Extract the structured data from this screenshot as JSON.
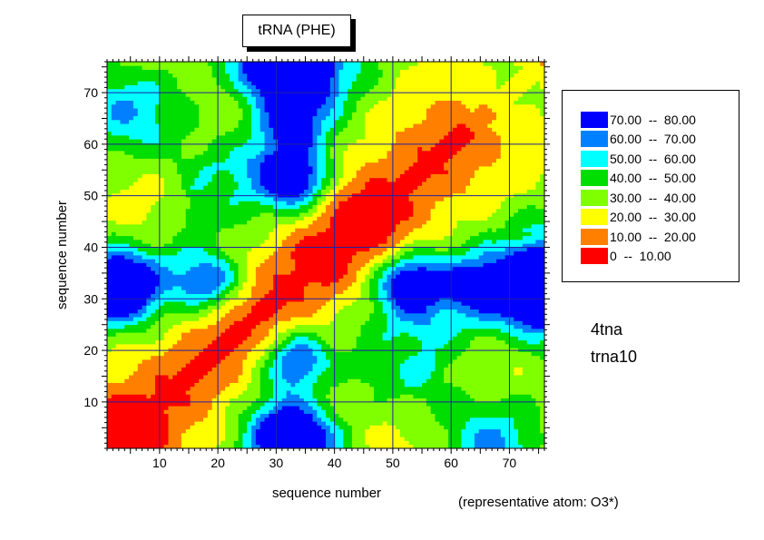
{
  "chart_data": {
    "type": "heatmap",
    "title": "tRNA (PHE)",
    "xlabel": "sequence number",
    "ylabel": "sequence number",
    "xlim": [
      1,
      76
    ],
    "ylim": [
      1,
      76
    ],
    "xticks": [
      10,
      20,
      30,
      40,
      50,
      60,
      70
    ],
    "yticks": [
      10,
      20,
      30,
      40,
      50,
      60,
      70
    ],
    "grid": true,
    "legend_position": "right",
    "legend": [
      {
        "label": "70.00  --  80.00",
        "color": "#0000ff"
      },
      {
        "label": "60.00  --  70.00",
        "color": "#0080ff"
      },
      {
        "label": "50.00  --  60.00",
        "color": "#00ffff"
      },
      {
        "label": "40.00  --  50.00",
        "color": "#00dd00"
      },
      {
        "label": "30.00  --  40.00",
        "color": "#80ff00"
      },
      {
        "label": "20.00  --  30.00",
        "color": "#ffff00"
      },
      {
        "label": "10.00  --  20.00",
        "color": "#ff8000"
      },
      {
        "label": "0  --  10.00",
        "color": "#ff0000"
      }
    ],
    "levels": [
      0,
      10,
      20,
      30,
      40,
      50,
      60,
      70,
      80
    ],
    "annotations": [
      "4tna",
      "trna10",
      "(representative atom: O3*)"
    ]
  }
}
